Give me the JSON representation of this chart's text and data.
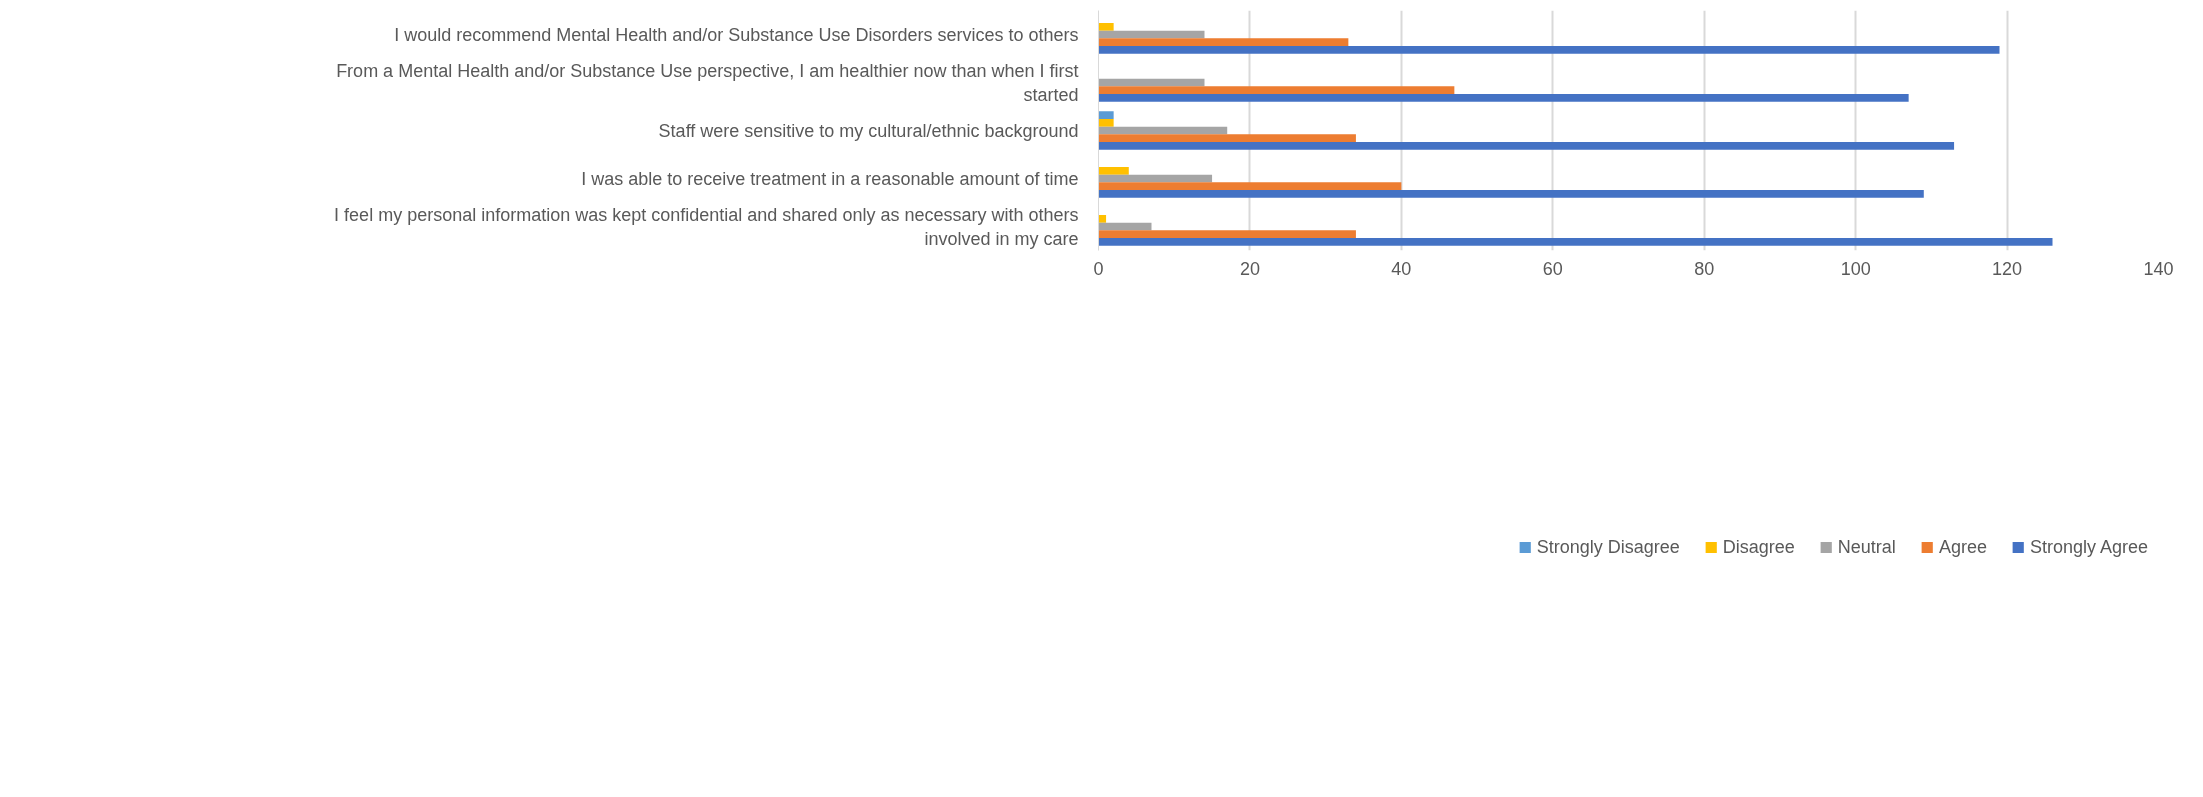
{
  "chart_data": {
    "type": "bar",
    "orientation": "horizontal",
    "categories": [
      "I would recommend Mental Health and/or Substance Use Disorders services to others",
      "From a Mental Health and/or Substance Use perspective, I am healthier now than when I first started",
      "Staff were sensitive to my cultural/ethnic background",
      "I was able to receive treatment in a reasonable amount of time",
      "I feel my personal information was kept confidential and shared only as necessary with others involved in my care"
    ],
    "series": [
      {
        "name": "Strongly Disagree",
        "color": "#5b9bd5",
        "values": [
          0,
          0,
          2,
          0,
          0
        ]
      },
      {
        "name": "Disagree",
        "color": "#ffc000",
        "values": [
          2,
          0,
          2,
          4,
          1
        ]
      },
      {
        "name": "Neutral",
        "color": "#a5a5a5",
        "values": [
          14,
          14,
          17,
          15,
          7
        ]
      },
      {
        "name": "Agree",
        "color": "#ed7d31",
        "values": [
          33,
          47,
          34,
          40,
          34
        ]
      },
      {
        "name": "Strongly Agree",
        "color": "#4472c4",
        "values": [
          119,
          107,
          113,
          109,
          126
        ]
      }
    ],
    "xlim": [
      0,
      140
    ],
    "xticks": [
      0,
      20,
      40,
      60,
      80,
      100,
      120,
      140
    ],
    "grid": "x",
    "legend": "bottom"
  }
}
